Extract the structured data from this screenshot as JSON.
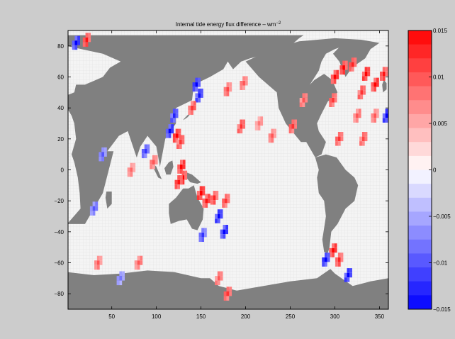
{
  "chart_data": {
    "type": "heatmap",
    "title": "Internal tide energy flux difference – wm",
    "title_superscript": "−2",
    "xlabel": "",
    "ylabel": "",
    "xlim": [
      1,
      360
    ],
    "ylim": [
      -90,
      90
    ],
    "x_ticks": [
      {
        "value": 50,
        "label": "50"
      },
      {
        "value": 100,
        "label": "100"
      },
      {
        "value": 150,
        "label": "150"
      },
      {
        "value": 200,
        "label": "200"
      },
      {
        "value": 250,
        "label": "250"
      },
      {
        "value": 300,
        "label": "300"
      },
      {
        "value": 350,
        "label": "350"
      }
    ],
    "y_ticks": [
      {
        "value": 80,
        "label": "80"
      },
      {
        "value": 60,
        "label": "60"
      },
      {
        "value": 40,
        "label": "40"
      },
      {
        "value": 20,
        "label": "20"
      },
      {
        "value": 0,
        "label": "0"
      },
      {
        "value": -20,
        "label": "−20"
      },
      {
        "value": -40,
        "label": "−40"
      },
      {
        "value": -60,
        "label": "−60"
      },
      {
        "value": -80,
        "label": "−80"
      }
    ],
    "colorbar": {
      "min": -0.015,
      "max": 0.015,
      "levels": 20,
      "ticks": [
        {
          "value": 0.015,
          "label": "0.015"
        },
        {
          "value": 0.01,
          "label": "0.01"
        },
        {
          "value": 0.005,
          "label": "0.005"
        },
        {
          "value": 0,
          "label": "0"
        },
        {
          "value": -0.005,
          "label": "−0.005"
        },
        {
          "value": -0.01,
          "label": "−0.01"
        },
        {
          "value": -0.015,
          "label": "−0.015"
        }
      ]
    },
    "land_color": "#808080",
    "ocean_color": "#f4f4f4",
    "land_masses": [
      {
        "name": "africa-eurasia",
        "polygon": [
          [
            0,
            -35
          ],
          [
            20,
            -35
          ],
          [
            40,
            -15
          ],
          [
            52,
            12
          ],
          [
            45,
            12
          ],
          [
            58,
            22
          ],
          [
            68,
            25
          ],
          [
            78,
            8
          ],
          [
            80,
            15
          ],
          [
            90,
            22
          ],
          [
            100,
            15
          ],
          [
            104,
            2
          ],
          [
            110,
            20
          ],
          [
            122,
            30
          ],
          [
            122,
            40
          ],
          [
            140,
            45
          ],
          [
            142,
            55
          ],
          [
            160,
            60
          ],
          [
            175,
            65
          ],
          [
            180,
            70
          ],
          [
            186,
            65
          ],
          [
            195,
            70
          ],
          [
            205,
            72
          ],
          [
            225,
            75
          ],
          [
            250,
            80
          ],
          [
            260,
            85
          ],
          [
            265,
            87
          ],
          [
            0,
            87
          ],
          [
            0,
            80
          ],
          [
            40,
            75
          ],
          [
            60,
            70
          ],
          [
            48,
            66
          ],
          [
            40,
            60
          ],
          [
            20,
            55
          ],
          [
            10,
            55
          ],
          [
            8,
            50
          ],
          [
            -1,
            48
          ],
          [
            0,
            40
          ],
          [
            5,
            35
          ],
          [
            8,
            30
          ],
          [
            10,
            20
          ],
          [
            5,
            10
          ],
          [
            8,
            5
          ],
          [
            10,
            0
          ],
          [
            12,
            -5
          ],
          [
            14,
            -15
          ],
          [
            15,
            -25
          ]
        ]
      },
      {
        "name": "india-peninsula",
        "polygon": [
          [
            68,
            25
          ],
          [
            78,
            8
          ],
          [
            82,
            15
          ],
          [
            90,
            22
          ],
          [
            76,
            22
          ]
        ]
      },
      {
        "name": "north-america",
        "polygon": [
          [
            200,
            70
          ],
          [
            215,
            60
          ],
          [
            235,
            50
          ],
          [
            237,
            40
          ],
          [
            245,
            30
          ],
          [
            252,
            25
          ],
          [
            262,
            18
          ],
          [
            268,
            18
          ],
          [
            278,
            8
          ],
          [
            285,
            10
          ],
          [
            290,
            18
          ],
          [
            282,
            25
          ],
          [
            280,
            30
          ],
          [
            284,
            35
          ],
          [
            292,
            44
          ],
          [
            298,
            47
          ],
          [
            303,
            50
          ],
          [
            297,
            58
          ],
          [
            288,
            62
          ],
          [
            277,
            58
          ],
          [
            272,
            55
          ],
          [
            282,
            64
          ],
          [
            285,
            70
          ],
          [
            290,
            75
          ],
          [
            300,
            78
          ],
          [
            320,
            82
          ],
          [
            330,
            84
          ],
          [
            300,
            85
          ],
          [
            260,
            83
          ],
          [
            230,
            78
          ]
        ]
      },
      {
        "name": "south-america",
        "polygon": [
          [
            278,
            8
          ],
          [
            282,
            0
          ],
          [
            280,
            -5
          ],
          [
            282,
            -15
          ],
          [
            288,
            -20
          ],
          [
            290,
            -30
          ],
          [
            286,
            -45
          ],
          [
            288,
            -53
          ],
          [
            292,
            -54
          ],
          [
            294,
            -50
          ],
          [
            296,
            -40
          ],
          [
            303,
            -35
          ],
          [
            312,
            -25
          ],
          [
            322,
            -20
          ],
          [
            326,
            -10
          ],
          [
            322,
            -5
          ],
          [
            312,
            0
          ],
          [
            302,
            8
          ],
          [
            290,
            10
          ]
        ]
      },
      {
        "name": "greenland",
        "polygon": [
          [
            312,
            60
          ],
          [
            318,
            65
          ],
          [
            324,
            68
          ],
          [
            334,
            72
          ],
          [
            340,
            78
          ],
          [
            350,
            82
          ],
          [
            330,
            84
          ],
          [
            310,
            82
          ],
          [
            303,
            78
          ],
          [
            298,
            75
          ],
          [
            305,
            70
          ]
        ]
      },
      {
        "name": "madagascar",
        "polygon": [
          [
            44,
            -14
          ],
          [
            50,
            -14
          ],
          [
            50,
            -22
          ],
          [
            45,
            -25
          ],
          [
            43,
            -18
          ]
        ]
      },
      {
        "name": "australia",
        "polygon": [
          [
            114,
            -22
          ],
          [
            122,
            -18
          ],
          [
            130,
            -12
          ],
          [
            136,
            -12
          ],
          [
            142,
            -10
          ],
          [
            146,
            -18
          ],
          [
            153,
            -25
          ],
          [
            152,
            -32
          ],
          [
            146,
            -39
          ],
          [
            140,
            -38
          ],
          [
            134,
            -32
          ],
          [
            125,
            -33
          ],
          [
            116,
            -35
          ],
          [
            114,
            -28
          ]
        ]
      },
      {
        "name": "borneo",
        "polygon": [
          [
            109,
            1
          ],
          [
            114,
            5
          ],
          [
            118,
            6
          ],
          [
            119,
            2
          ],
          [
            116,
            -3
          ],
          [
            111,
            -3
          ]
        ]
      },
      {
        "name": "sumatra",
        "polygon": [
          [
            95,
            5
          ],
          [
            100,
            2
          ],
          [
            106,
            -6
          ],
          [
            102,
            -5
          ],
          [
            96,
            2
          ]
        ]
      },
      {
        "name": "new-guinea",
        "polygon": [
          [
            131,
            -1
          ],
          [
            140,
            -3
          ],
          [
            150,
            -8
          ],
          [
            146,
            -9
          ],
          [
            138,
            -8
          ],
          [
            132,
            -4
          ]
        ]
      },
      {
        "name": "japan",
        "polygon": [
          [
            130,
            32
          ],
          [
            135,
            34
          ],
          [
            141,
            38
          ],
          [
            142,
            43
          ],
          [
            140,
            40
          ],
          [
            136,
            36
          ],
          [
            131,
            33
          ]
        ]
      },
      {
        "name": "uk",
        "polygon": [
          [
            354,
            50
          ],
          [
            358,
            52
          ],
          [
            358,
            56
          ],
          [
            355,
            58
          ],
          [
            353,
            55
          ]
        ]
      },
      {
        "name": "antarctica",
        "polygon": [
          [
            0,
            -66
          ],
          [
            30,
            -68
          ],
          [
            60,
            -67
          ],
          [
            90,
            -65
          ],
          [
            120,
            -66
          ],
          [
            150,
            -70
          ],
          [
            160,
            -70
          ],
          [
            170,
            -75
          ],
          [
            190,
            -78
          ],
          [
            220,
            -75
          ],
          [
            250,
            -72
          ],
          [
            280,
            -70
          ],
          [
            295,
            -64
          ],
          [
            300,
            -67
          ],
          [
            320,
            -75
          ],
          [
            340,
            -72
          ],
          [
            360,
            -70
          ],
          [
            360,
            -90
          ],
          [
            0,
            -90
          ]
        ]
      }
    ],
    "flux_hotspots": [
      {
        "lon": 123,
        "lat": 22,
        "value": 0.015
      },
      {
        "lon": 127,
        "lat": 18,
        "value": 0.012
      },
      {
        "lon": 128,
        "lat": 2,
        "value": 0.015
      },
      {
        "lon": 130,
        "lat": -5,
        "value": 0.015
      },
      {
        "lon": 125,
        "lat": -8,
        "value": 0.014
      },
      {
        "lon": 150,
        "lat": -15,
        "value": 0.015
      },
      {
        "lon": 156,
        "lat": -20,
        "value": 0.014
      },
      {
        "lon": 165,
        "lat": -18,
        "value": 0.013
      },
      {
        "lon": 178,
        "lat": -20,
        "value": 0.012
      },
      {
        "lon": 170,
        "lat": -30,
        "value": -0.015
      },
      {
        "lon": 176,
        "lat": -40,
        "value": -0.015
      },
      {
        "lon": 152,
        "lat": -42,
        "value": -0.012
      },
      {
        "lon": 145,
        "lat": 55,
        "value": -0.015
      },
      {
        "lon": 148,
        "lat": 48,
        "value": -0.014
      },
      {
        "lon": 140,
        "lat": 40,
        "value": 0.012
      },
      {
        "lon": 180,
        "lat": 52,
        "value": 0.011
      },
      {
        "lon": 198,
        "lat": 56,
        "value": 0.01
      },
      {
        "lon": 120,
        "lat": 35,
        "value": -0.013
      },
      {
        "lon": 115,
        "lat": 25,
        "value": -0.015
      },
      {
        "lon": 72,
        "lat": 0,
        "value": 0.009
      },
      {
        "lon": 97,
        "lat": 5,
        "value": 0.01
      },
      {
        "lon": 195,
        "lat": 28,
        "value": 0.012
      },
      {
        "lon": 215,
        "lat": 30,
        "value": 0.008
      },
      {
        "lon": 230,
        "lat": 22,
        "value": 0.01
      },
      {
        "lon": 253,
        "lat": 28,
        "value": 0.012
      },
      {
        "lon": 265,
        "lat": 45,
        "value": 0.01
      },
      {
        "lon": 300,
        "lat": 60,
        "value": 0.015
      },
      {
        "lon": 310,
        "lat": 66,
        "value": 0.015
      },
      {
        "lon": 320,
        "lat": 68,
        "value": 0.013
      },
      {
        "lon": 335,
        "lat": 62,
        "value": 0.015
      },
      {
        "lon": 345,
        "lat": 55,
        "value": 0.015
      },
      {
        "lon": 355,
        "lat": 62,
        "value": 0.014
      },
      {
        "lon": 298,
        "lat": 45,
        "value": 0.012
      },
      {
        "lon": 330,
        "lat": 50,
        "value": 0.012
      },
      {
        "lon": 325,
        "lat": 35,
        "value": 0.01
      },
      {
        "lon": 345,
        "lat": 35,
        "value": 0.01
      },
      {
        "lon": 305,
        "lat": 20,
        "value": 0.012
      },
      {
        "lon": 332,
        "lat": 20,
        "value": 0.011
      },
      {
        "lon": 298,
        "lat": -52,
        "value": 0.015
      },
      {
        "lon": 305,
        "lat": -58,
        "value": 0.013
      },
      {
        "lon": 290,
        "lat": -58,
        "value": -0.015
      },
      {
        "lon": 315,
        "lat": -68,
        "value": -0.015
      },
      {
        "lon": 80,
        "lat": -60,
        "value": 0.01
      },
      {
        "lon": 35,
        "lat": -60,
        "value": 0.01
      },
      {
        "lon": 60,
        "lat": -70,
        "value": -0.008
      },
      {
        "lon": 170,
        "lat": -70,
        "value": 0.01
      },
      {
        "lon": 10,
        "lat": 82,
        "value": -0.015
      },
      {
        "lon": 22,
        "lat": 84,
        "value": 0.014
      },
      {
        "lon": 180,
        "lat": -80,
        "value": 0.012
      },
      {
        "lon": 358,
        "lat": 35,
        "value": -0.015
      },
      {
        "lon": 30,
        "lat": -25,
        "value": -0.01
      },
      {
        "lon": 40,
        "lat": 10,
        "value": -0.01
      },
      {
        "lon": 88,
        "lat": 12,
        "value": -0.012
      }
    ]
  }
}
